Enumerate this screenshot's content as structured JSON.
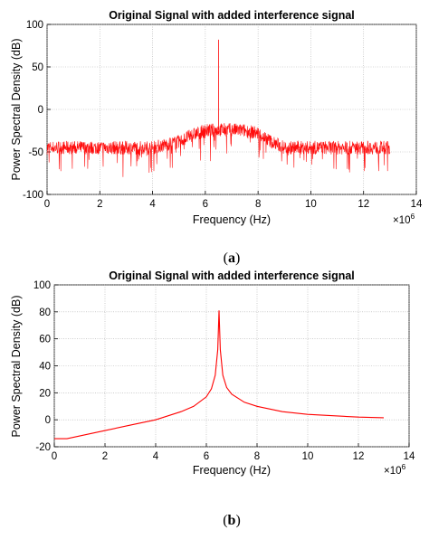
{
  "chart_data": [
    {
      "type": "line",
      "panel_label": "a",
      "title": "Original Signal with added interference signal",
      "xlabel": "Frequency (Hz)",
      "ylabel": "Power Spectral Density (dB)",
      "x_exponent_label": "×10",
      "x_exponent": "6",
      "xlim": [
        0,
        14
      ],
      "ylim": [
        -100,
        100
      ],
      "xticks": [
        0,
        2,
        4,
        6,
        8,
        10,
        12,
        14
      ],
      "yticks": [
        -100,
        -50,
        0,
        50,
        100
      ],
      "grid": true,
      "color": "#ff0000",
      "series": [
        {
          "style": "noisy",
          "x": [
            0,
            4,
            5,
            5.5,
            6,
            6.5,
            7,
            7.5,
            8,
            8.5,
            9,
            13
          ],
          "values": [
            -45,
            -45,
            -38,
            -30,
            -25,
            -24,
            -24,
            -25,
            -28,
            -38,
            -45,
            -45
          ],
          "spike": {
            "x": 6.5,
            "value": 82
          }
        }
      ]
    },
    {
      "type": "line",
      "panel_label": "b",
      "title": "Original Signal with added interference signal",
      "xlabel": "Frequency (Hz)",
      "ylabel": "Power Spectral Density (dB)",
      "x_exponent_label": "×10",
      "x_exponent": "6",
      "xlim": [
        0,
        14
      ],
      "ylim": [
        -20,
        100
      ],
      "xticks": [
        0,
        2,
        4,
        6,
        8,
        10,
        12,
        14
      ],
      "yticks": [
        -20,
        0,
        20,
        40,
        60,
        80,
        100
      ],
      "grid": true,
      "color": "#ff0000",
      "series": [
        {
          "style": "smooth",
          "x": [
            0,
            0.5,
            1,
            2,
            3,
            4,
            5,
            5.5,
            6,
            6.2,
            6.35,
            6.45,
            6.5,
            6.55,
            6.65,
            6.8,
            7,
            7.5,
            8,
            9,
            10,
            11,
            12,
            13
          ],
          "values": [
            -14,
            -14,
            -12,
            -8,
            -4,
            0,
            6,
            10,
            17,
            23,
            33,
            52,
            81,
            52,
            33,
            24,
            19,
            13,
            10,
            6,
            4,
            3,
            2,
            1.5
          ]
        }
      ]
    }
  ]
}
